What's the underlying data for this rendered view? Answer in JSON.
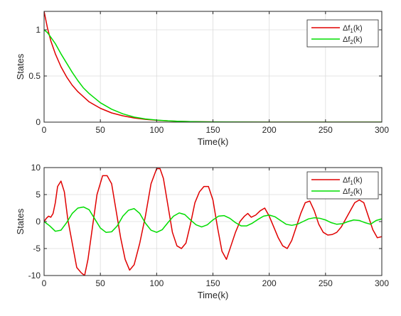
{
  "chart_data": [
    {
      "type": "line",
      "xlabel": "Time(k)",
      "ylabel": "States",
      "xlim": [
        0,
        300
      ],
      "ylim": [
        0,
        1.2
      ],
      "xticks": [
        "0",
        "50",
        "100",
        "150",
        "200",
        "250",
        "300"
      ],
      "yticks": [
        "0",
        "0.5",
        "1"
      ],
      "grid": true,
      "legend_position": "top-right",
      "series": [
        {
          "name_main": "Δf",
          "name_sub": "1",
          "name_suffix": "(k)",
          "color": "#e00000",
          "x": [
            0,
            3,
            6,
            10,
            15,
            20,
            25,
            30,
            40,
            50,
            60,
            70,
            80,
            90,
            100,
            110,
            120,
            130,
            140,
            150,
            175,
            200,
            250,
            300
          ],
          "y": [
            1.2,
            1.02,
            0.88,
            0.74,
            0.6,
            0.49,
            0.4,
            0.33,
            0.22,
            0.15,
            0.1,
            0.068,
            0.045,
            0.03,
            0.02,
            0.013,
            0.009,
            0.006,
            0.004,
            0.003,
            0.001,
            0.0,
            0.0,
            0.0
          ]
        },
        {
          "name_main": "Δf",
          "name_sub": "2",
          "name_suffix": "(k)",
          "color": "#00dd00",
          "x": [
            0,
            3,
            6,
            10,
            15,
            20,
            25,
            30,
            35,
            40,
            50,
            60,
            70,
            80,
            90,
            100,
            110,
            120,
            130,
            140,
            150,
            175,
            200,
            250,
            300
          ],
          "y": [
            1.0,
            0.97,
            0.92,
            0.85,
            0.74,
            0.64,
            0.54,
            0.45,
            0.37,
            0.31,
            0.21,
            0.14,
            0.09,
            0.055,
            0.035,
            0.022,
            0.014,
            0.009,
            0.006,
            0.004,
            0.002,
            0.001,
            0.0,
            0.0,
            0.0
          ]
        }
      ]
    },
    {
      "type": "line",
      "xlabel": "Time(k)",
      "ylabel": "States",
      "xlim": [
        0,
        300
      ],
      "ylim": [
        -10,
        10
      ],
      "xticks": [
        "0",
        "50",
        "100",
        "150",
        "200",
        "250",
        "300"
      ],
      "yticks": [
        "-10",
        "-5",
        "0",
        "5",
        "10"
      ],
      "grid": true,
      "legend_position": "top-right",
      "series": [
        {
          "name_main": "Δf",
          "name_sub": "1",
          "name_suffix": "(k)",
          "color": "#e00000",
          "x": [
            0,
            2,
            4,
            6,
            8,
            10,
            12,
            15,
            18,
            21,
            25,
            29,
            33,
            36,
            39,
            43,
            47,
            52,
            56,
            60,
            64,
            68,
            72,
            76,
            80,
            85,
            90,
            95,
            100,
            103,
            106,
            110,
            114,
            118,
            122,
            126,
            130,
            134,
            138,
            142,
            146,
            150,
            154,
            158,
            162,
            166,
            170,
            174,
            178,
            181,
            184,
            188,
            192,
            196,
            200,
            204,
            208,
            212,
            216,
            220,
            224,
            228,
            232,
            236,
            240,
            244,
            248,
            252,
            256,
            260,
            264,
            268,
            272,
            276,
            280,
            284,
            288,
            292,
            296,
            300
          ],
          "y": [
            0.0,
            0.6,
            1.0,
            0.8,
            1.5,
            3.5,
            6.5,
            7.5,
            5.5,
            0.5,
            -4.0,
            -8.5,
            -9.5,
            -10.0,
            -7.0,
            -1.0,
            5.0,
            8.5,
            8.5,
            7.0,
            2.0,
            -3.0,
            -7.0,
            -9.0,
            -8.0,
            -4.0,
            1.0,
            7.0,
            9.8,
            9.8,
            8.0,
            3.0,
            -2.0,
            -4.5,
            -5.0,
            -4.0,
            -0.5,
            3.5,
            5.5,
            6.5,
            6.5,
            4.0,
            -1.0,
            -5.5,
            -7.0,
            -4.5,
            -2.0,
            0.0,
            1.0,
            1.5,
            0.8,
            1.2,
            2.0,
            2.5,
            1.0,
            -1.0,
            -3.0,
            -4.5,
            -5.0,
            -3.5,
            -1.0,
            1.5,
            3.5,
            3.8,
            2.0,
            -0.5,
            -2.0,
            -2.5,
            -2.4,
            -2.0,
            -1.0,
            0.5,
            2.0,
            3.5,
            4.0,
            3.5,
            1.0,
            -1.5,
            -3.0,
            -2.8
          ]
        },
        {
          "name_main": "Δf",
          "name_sub": "2",
          "name_suffix": "(k)",
          "color": "#00dd00",
          "x": [
            0,
            5,
            10,
            15,
            20,
            25,
            30,
            35,
            40,
            45,
            50,
            55,
            60,
            65,
            70,
            75,
            80,
            85,
            90,
            95,
            100,
            105,
            110,
            115,
            120,
            125,
            130,
            135,
            140,
            145,
            150,
            155,
            160,
            165,
            170,
            175,
            180,
            185,
            190,
            195,
            200,
            205,
            210,
            215,
            220,
            225,
            230,
            235,
            240,
            245,
            250,
            255,
            260,
            265,
            270,
            275,
            280,
            285,
            290,
            295,
            300
          ],
          "y": [
            0.0,
            -0.8,
            -1.8,
            -1.6,
            -0.2,
            1.5,
            2.5,
            2.7,
            2.2,
            0.5,
            -1.2,
            -2.0,
            -1.9,
            -0.8,
            1.0,
            2.1,
            2.4,
            1.5,
            -0.3,
            -1.6,
            -2.0,
            -1.5,
            -0.2,
            1.0,
            1.6,
            1.3,
            0.3,
            -0.6,
            -1.0,
            -0.6,
            0.3,
            1.0,
            1.1,
            0.6,
            -0.2,
            -0.8,
            -0.8,
            -0.3,
            0.4,
            1.0,
            1.2,
            0.9,
            0.2,
            -0.5,
            -0.7,
            -0.5,
            0.0,
            0.5,
            0.7,
            0.6,
            0.3,
            -0.2,
            -0.5,
            -0.4,
            0.0,
            0.3,
            0.2,
            -0.2,
            -0.5,
            0.2,
            0.5
          ]
        }
      ]
    }
  ]
}
